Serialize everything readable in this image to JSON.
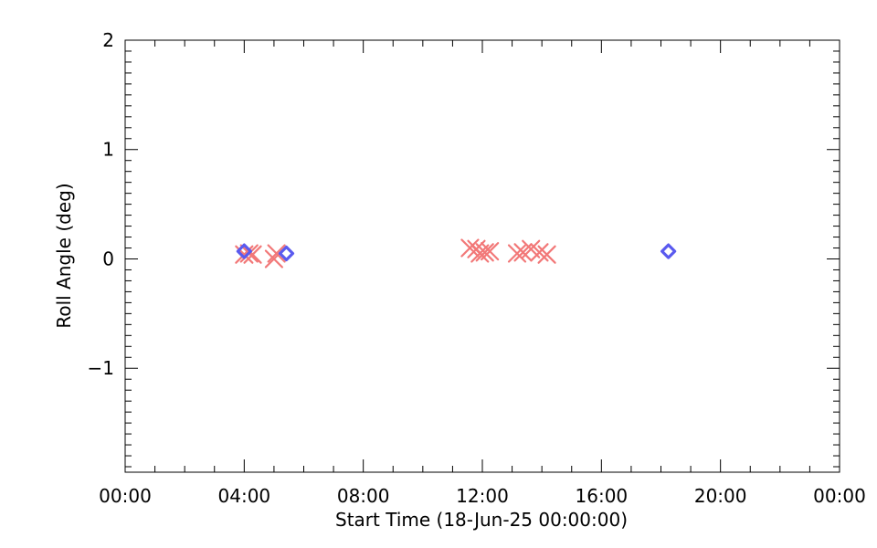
{
  "chart_data": {
    "type": "scatter",
    "title": "",
    "xlabel": "Start Time (18-Jun-25 00:00:00)",
    "ylabel": "Roll Angle (deg)",
    "xlim": [
      "00:00",
      "24:00"
    ],
    "ylim": [
      -1.95,
      2.0
    ],
    "x_tick_labels": [
      "00:00",
      "04:00",
      "08:00",
      "12:00",
      "16:00",
      "20:00",
      "00:00"
    ],
    "y_tick_labels": [
      "2",
      "1",
      "0",
      "−1"
    ],
    "y_tick_values": [
      2,
      1,
      0,
      -1
    ],
    "grid": false,
    "colors": {
      "cross": "#f27878",
      "diamond": "#5a5aef",
      "axes": "#000000"
    },
    "series": [
      {
        "marker": "cross",
        "points": [
          {
            "x": "04:00",
            "y": 0.04
          },
          {
            "x": "04:10",
            "y": 0.05
          },
          {
            "x": "04:17",
            "y": 0.04
          },
          {
            "x": "05:00",
            "y": 0.0
          },
          {
            "x": "05:05",
            "y": 0.05
          },
          {
            "x": "11:35",
            "y": 0.1
          },
          {
            "x": "11:48",
            "y": 0.09
          },
          {
            "x": "11:55",
            "y": 0.05
          },
          {
            "x": "12:05",
            "y": 0.06
          },
          {
            "x": "12:15",
            "y": 0.07
          },
          {
            "x": "13:10",
            "y": 0.05
          },
          {
            "x": "13:22",
            "y": 0.06
          },
          {
            "x": "13:38",
            "y": 0.09
          },
          {
            "x": "13:55",
            "y": 0.06
          },
          {
            "x": "14:10",
            "y": 0.04
          }
        ]
      },
      {
        "marker": "diamond",
        "points": [
          {
            "x": "04:00",
            "y": 0.07
          },
          {
            "x": "05:25",
            "y": 0.05
          },
          {
            "x": "18:15",
            "y": 0.07
          }
        ]
      }
    ]
  }
}
